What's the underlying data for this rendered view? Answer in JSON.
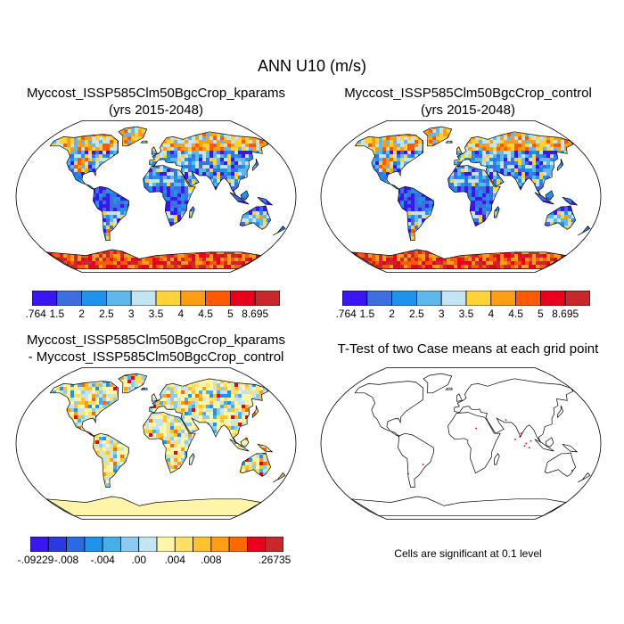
{
  "title": "ANN U10 (m/s)",
  "panels": [
    {
      "id": "kparams",
      "title_line1": "Myccost_ISSP585Clm50BgcCrop_kparams",
      "title_line2": "(yrs 2015-2048)"
    },
    {
      "id": "control",
      "title_line1": "Myccost_ISSP585Clm50BgcCrop_control",
      "title_line2": "(yrs 2015-2048)"
    },
    {
      "id": "diff",
      "title_line1": "Myccost_ISSP585Clm50BgcCrop_kparams",
      "title_line2": "- Myccost_ISSP585Clm50BgcCrop_control"
    },
    {
      "id": "ttest",
      "title_line1": "T-Test of two Case means at each grid point",
      "title_line2": ""
    }
  ],
  "colorbar_main": {
    "labels": [
      ".764",
      "1.5",
      "2",
      "2.5",
      "3",
      "3.5",
      "4",
      "4.5",
      "5",
      "8.695"
    ],
    "colors": [
      "#3a16f0",
      "#3d6fe0",
      "#1f93ea",
      "#5fb8ec",
      "#c4e4f2",
      "#ffd23a",
      "#ff9d14",
      "#ff5a00",
      "#e8001c",
      "#c8282c"
    ]
  },
  "colorbar_diff": {
    "labels": [
      "-.09229",
      "-.008",
      "-.004",
      ".00",
      ".004",
      ".008",
      ".26735"
    ],
    "colors": [
      "#3a16f0",
      "#2a3ae0",
      "#2a6ae4",
      "#1f93ea",
      "#46afe8",
      "#8ccbef",
      "#c4e4f2",
      "#fff5a8",
      "#ffe066",
      "#ffc22e",
      "#ff9d14",
      "#ff6a00",
      "#e8001c",
      "#c8282c"
    ]
  },
  "footnote": "Cells are significant at 0.1 level"
}
